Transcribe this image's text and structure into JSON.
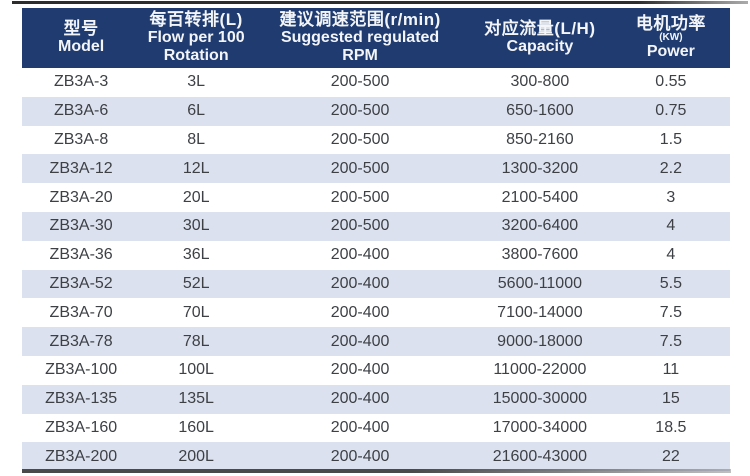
{
  "colors": {
    "header_bg": "#1f3b70",
    "header_fg": "#f3f5f9",
    "row_alt_bg": "#dce1ef",
    "cell_fg": "#3d4145"
  },
  "table": {
    "columns": [
      {
        "zh": "型号",
        "en": "Model"
      },
      {
        "zh": "每百转排(L)",
        "en1": "Flow per 100",
        "en2": "Rotation"
      },
      {
        "zh": "建议调速范围(r/min)",
        "en1": "Suggested regulated",
        "en2": "RPM"
      },
      {
        "zh": "对应流量(L/H)",
        "en": "Capacity"
      },
      {
        "zh": "电机功率",
        "sub": "(KW)",
        "en": "Power"
      }
    ],
    "rows": [
      {
        "model": "ZB3A-3",
        "flow": "3L",
        "rpm": "200-500",
        "capacity": "300-800",
        "power": "0.55"
      },
      {
        "model": "ZB3A-6",
        "flow": "6L",
        "rpm": "200-500",
        "capacity": "650-1600",
        "power": "0.75"
      },
      {
        "model": "ZB3A-8",
        "flow": "8L",
        "rpm": "200-500",
        "capacity": "850-2160",
        "power": "1.5"
      },
      {
        "model": "ZB3A-12",
        "flow": "12L",
        "rpm": "200-500",
        "capacity": "1300-3200",
        "power": "2.2"
      },
      {
        "model": "ZB3A-20",
        "flow": "20L",
        "rpm": "200-500",
        "capacity": "2100-5400",
        "power": "3"
      },
      {
        "model": "ZB3A-30",
        "flow": "30L",
        "rpm": "200-500",
        "capacity": "3200-6400",
        "power": "4"
      },
      {
        "model": "ZB3A-36",
        "flow": "36L",
        "rpm": "200-400",
        "capacity": "3800-7600",
        "power": "4"
      },
      {
        "model": "ZB3A-52",
        "flow": "52L",
        "rpm": "200-400",
        "capacity": "5600-11000",
        "power": "5.5"
      },
      {
        "model": "ZB3A-70",
        "flow": "70L",
        "rpm": "200-400",
        "capacity": "7100-14000",
        "power": "7.5"
      },
      {
        "model": "ZB3A-78",
        "flow": "78L",
        "rpm": "200-400",
        "capacity": "9000-18000",
        "power": "7.5"
      },
      {
        "model": "ZB3A-100",
        "flow": "100L",
        "rpm": "200-400",
        "capacity": "11000-22000",
        "power": "11"
      },
      {
        "model": "ZB3A-135",
        "flow": "135L",
        "rpm": "200-400",
        "capacity": "15000-30000",
        "power": "15"
      },
      {
        "model": "ZB3A-160",
        "flow": "160L",
        "rpm": "200-400",
        "capacity": "17000-34000",
        "power": "18.5"
      },
      {
        "model": "ZB3A-200",
        "flow": "200L",
        "rpm": "200-400",
        "capacity": "21600-43000",
        "power": "22"
      }
    ]
  }
}
